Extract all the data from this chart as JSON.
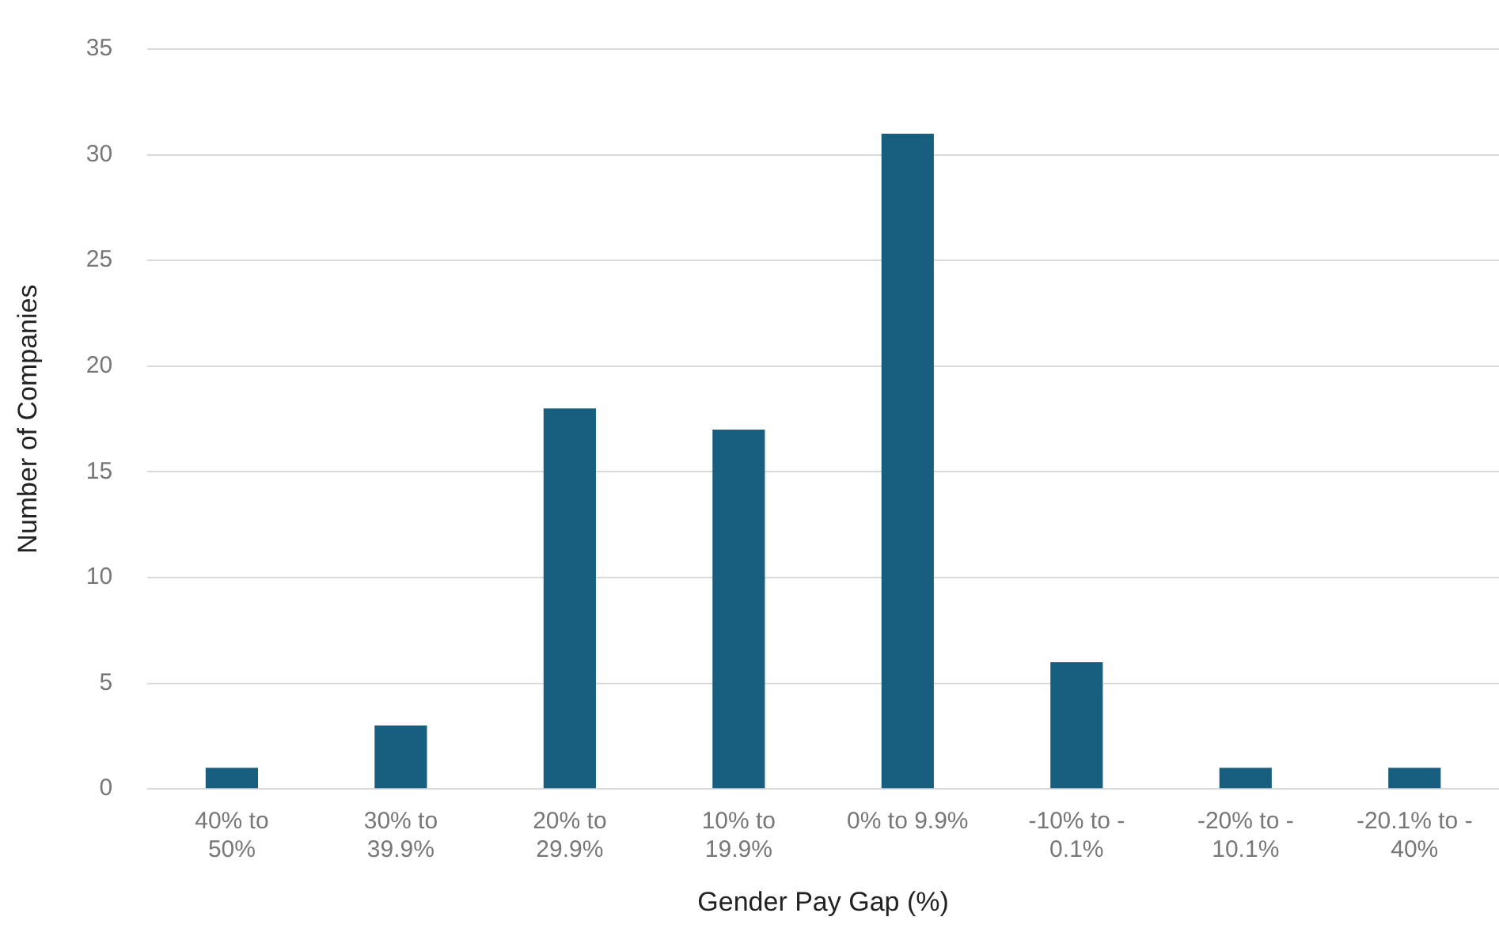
{
  "chart_data": {
    "type": "bar",
    "xlabel": "Gender Pay Gap (%)",
    "ylabel": "Number of Companies",
    "categories": [
      "40% to\n50%",
      "30% to\n39.9%",
      "20% to\n29.9%",
      "10% to\n19.9%",
      "0% to 9.9%",
      "-10% to -\n0.1%",
      "-20% to -\n10.1%",
      "-20.1% to -\n40%"
    ],
    "values": [
      1,
      3,
      18,
      17,
      31,
      6,
      1,
      1
    ],
    "color": "#175e7f",
    "ylim": [
      0,
      35
    ],
    "yticks": [
      0,
      5,
      10,
      15,
      20,
      25,
      30,
      35
    ],
    "grid": "y",
    "legend": false
  }
}
